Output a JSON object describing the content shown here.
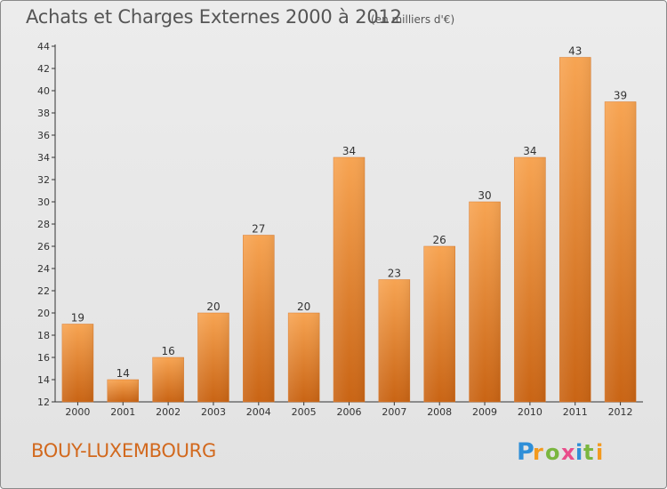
{
  "title": "Achats et Charges Externes 2000 à 2012",
  "unit": "(en milliers d'€)",
  "commune": "BOUY-LUXEMBOURG",
  "logo_text": "Proxiti",
  "colors": {
    "bar_light": "#f7a24e",
    "bar_dark": "#c96414",
    "commune": "#d2691e",
    "text": "#555555"
  },
  "chart_data": {
    "type": "bar",
    "title": "Achats et Charges Externes 2000 à 2012",
    "subtitle": "(en milliers d'€)",
    "categories": [
      "2000",
      "2001",
      "2002",
      "2003",
      "2004",
      "2005",
      "2006",
      "2007",
      "2008",
      "2009",
      "2010",
      "2011",
      "2012"
    ],
    "values": [
      19,
      14,
      16,
      20,
      27,
      20,
      34,
      23,
      26,
      30,
      34,
      43,
      39
    ],
    "ylim": [
      12,
      44
    ],
    "yticks": [
      12,
      14,
      16,
      18,
      20,
      22,
      24,
      26,
      28,
      30,
      32,
      34,
      36,
      38,
      40,
      42,
      44
    ],
    "grid": false,
    "data_labels": true
  }
}
